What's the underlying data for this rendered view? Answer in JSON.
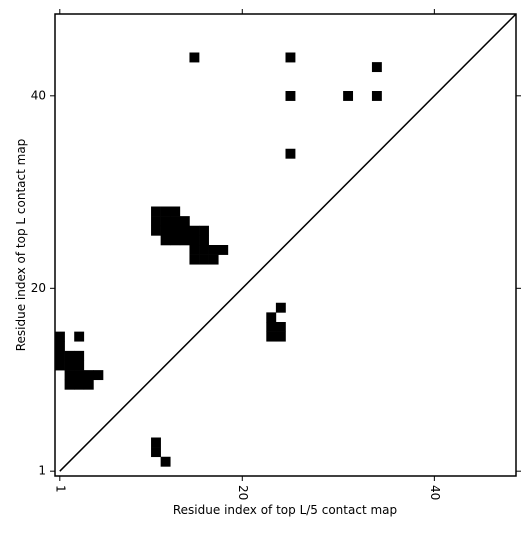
{
  "chart_data": {
    "type": "scatter",
    "marker": "square",
    "color": "#000000",
    "xlabel": "Residue index of top L/5 contact map",
    "ylabel": "Residue index of top L contact map",
    "xlim": [
      0.5,
      48.5
    ],
    "ylim": [
      0.5,
      48.5
    ],
    "xticks": [
      1,
      20,
      40
    ],
    "yticks": [
      1,
      20,
      40
    ],
    "diagonal": true,
    "x": [
      15,
      25,
      34,
      25,
      31,
      34,
      25,
      11,
      12,
      13,
      11,
      12,
      13,
      14,
      11,
      12,
      13,
      14,
      15,
      16,
      12,
      13,
      14,
      15,
      16,
      15,
      16,
      17,
      18,
      15,
      16,
      17,
      24,
      23,
      23,
      24,
      23,
      24,
      3,
      1,
      1,
      1,
      2,
      3,
      1,
      2,
      3,
      2,
      3,
      4,
      5,
      2,
      3,
      4,
      11,
      11,
      12
    ],
    "y": [
      44,
      44,
      43,
      40,
      40,
      40,
      34,
      28,
      28,
      28,
      27,
      27,
      27,
      27,
      26,
      26,
      26,
      26,
      26,
      26,
      25,
      25,
      25,
      25,
      25,
      24,
      24,
      24,
      24,
      23,
      23,
      23,
      18,
      17,
      16,
      16,
      15,
      15,
      15,
      15,
      14,
      13,
      13,
      13,
      12,
      12,
      12,
      11,
      11,
      11,
      11,
      10,
      10,
      10,
      4,
      3,
      2
    ]
  }
}
